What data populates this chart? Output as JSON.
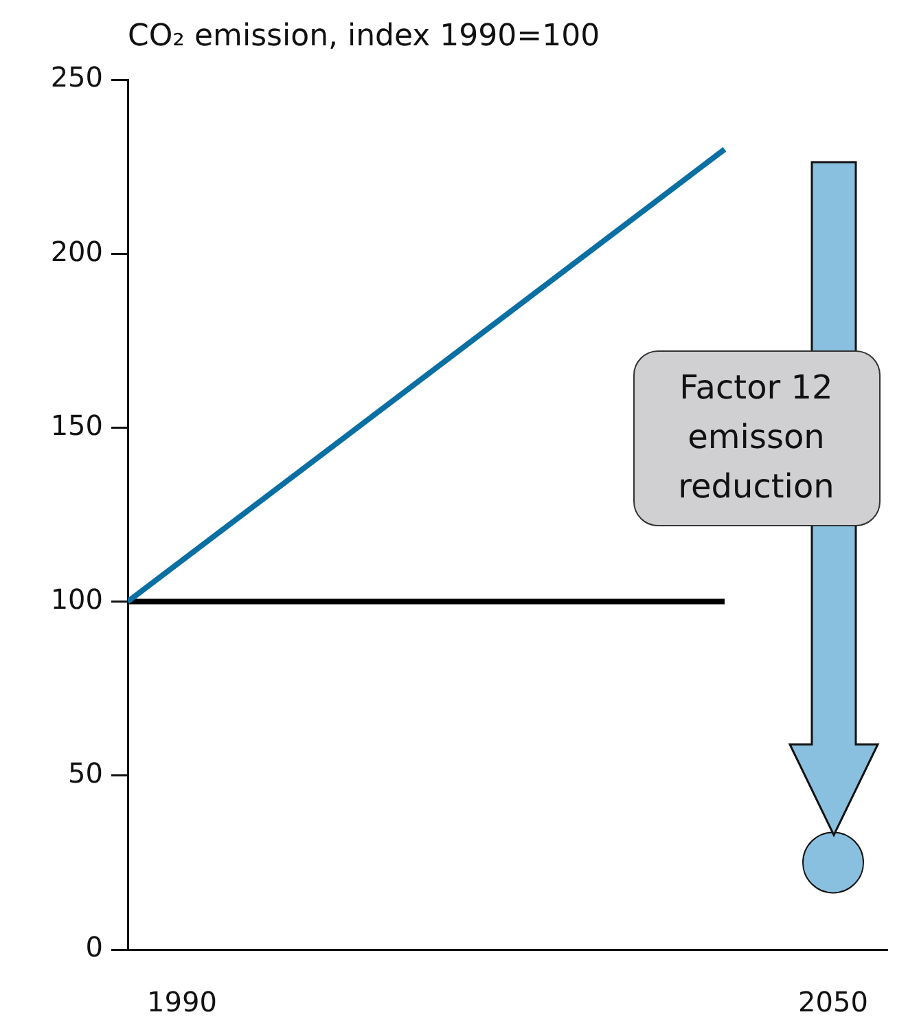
{
  "chart_data": {
    "type": "line",
    "title": "CO₂ emission, index 1990=100",
    "xlim": [
      1985,
      2055
    ],
    "xticks": [
      1990,
      2050
    ],
    "ylim": [
      0,
      250
    ],
    "yticks": [
      0,
      50,
      100,
      150,
      200,
      250
    ],
    "series": [
      {
        "x": [
          1985,
          2040
        ],
        "values": [
          100,
          230
        ],
        "color": "#0a6fa3"
      },
      {
        "x": [
          1985,
          2040
        ],
        "values": [
          100,
          100
        ],
        "color": "#000000"
      },
      {
        "type": "scatter",
        "marker": "circle",
        "x": [
          2050
        ],
        "values": [
          25
        ],
        "color": "#89c0e0"
      }
    ],
    "annotations": [
      "Factor 12 emisson reduction"
    ],
    "grid": false,
    "legend": false
  }
}
